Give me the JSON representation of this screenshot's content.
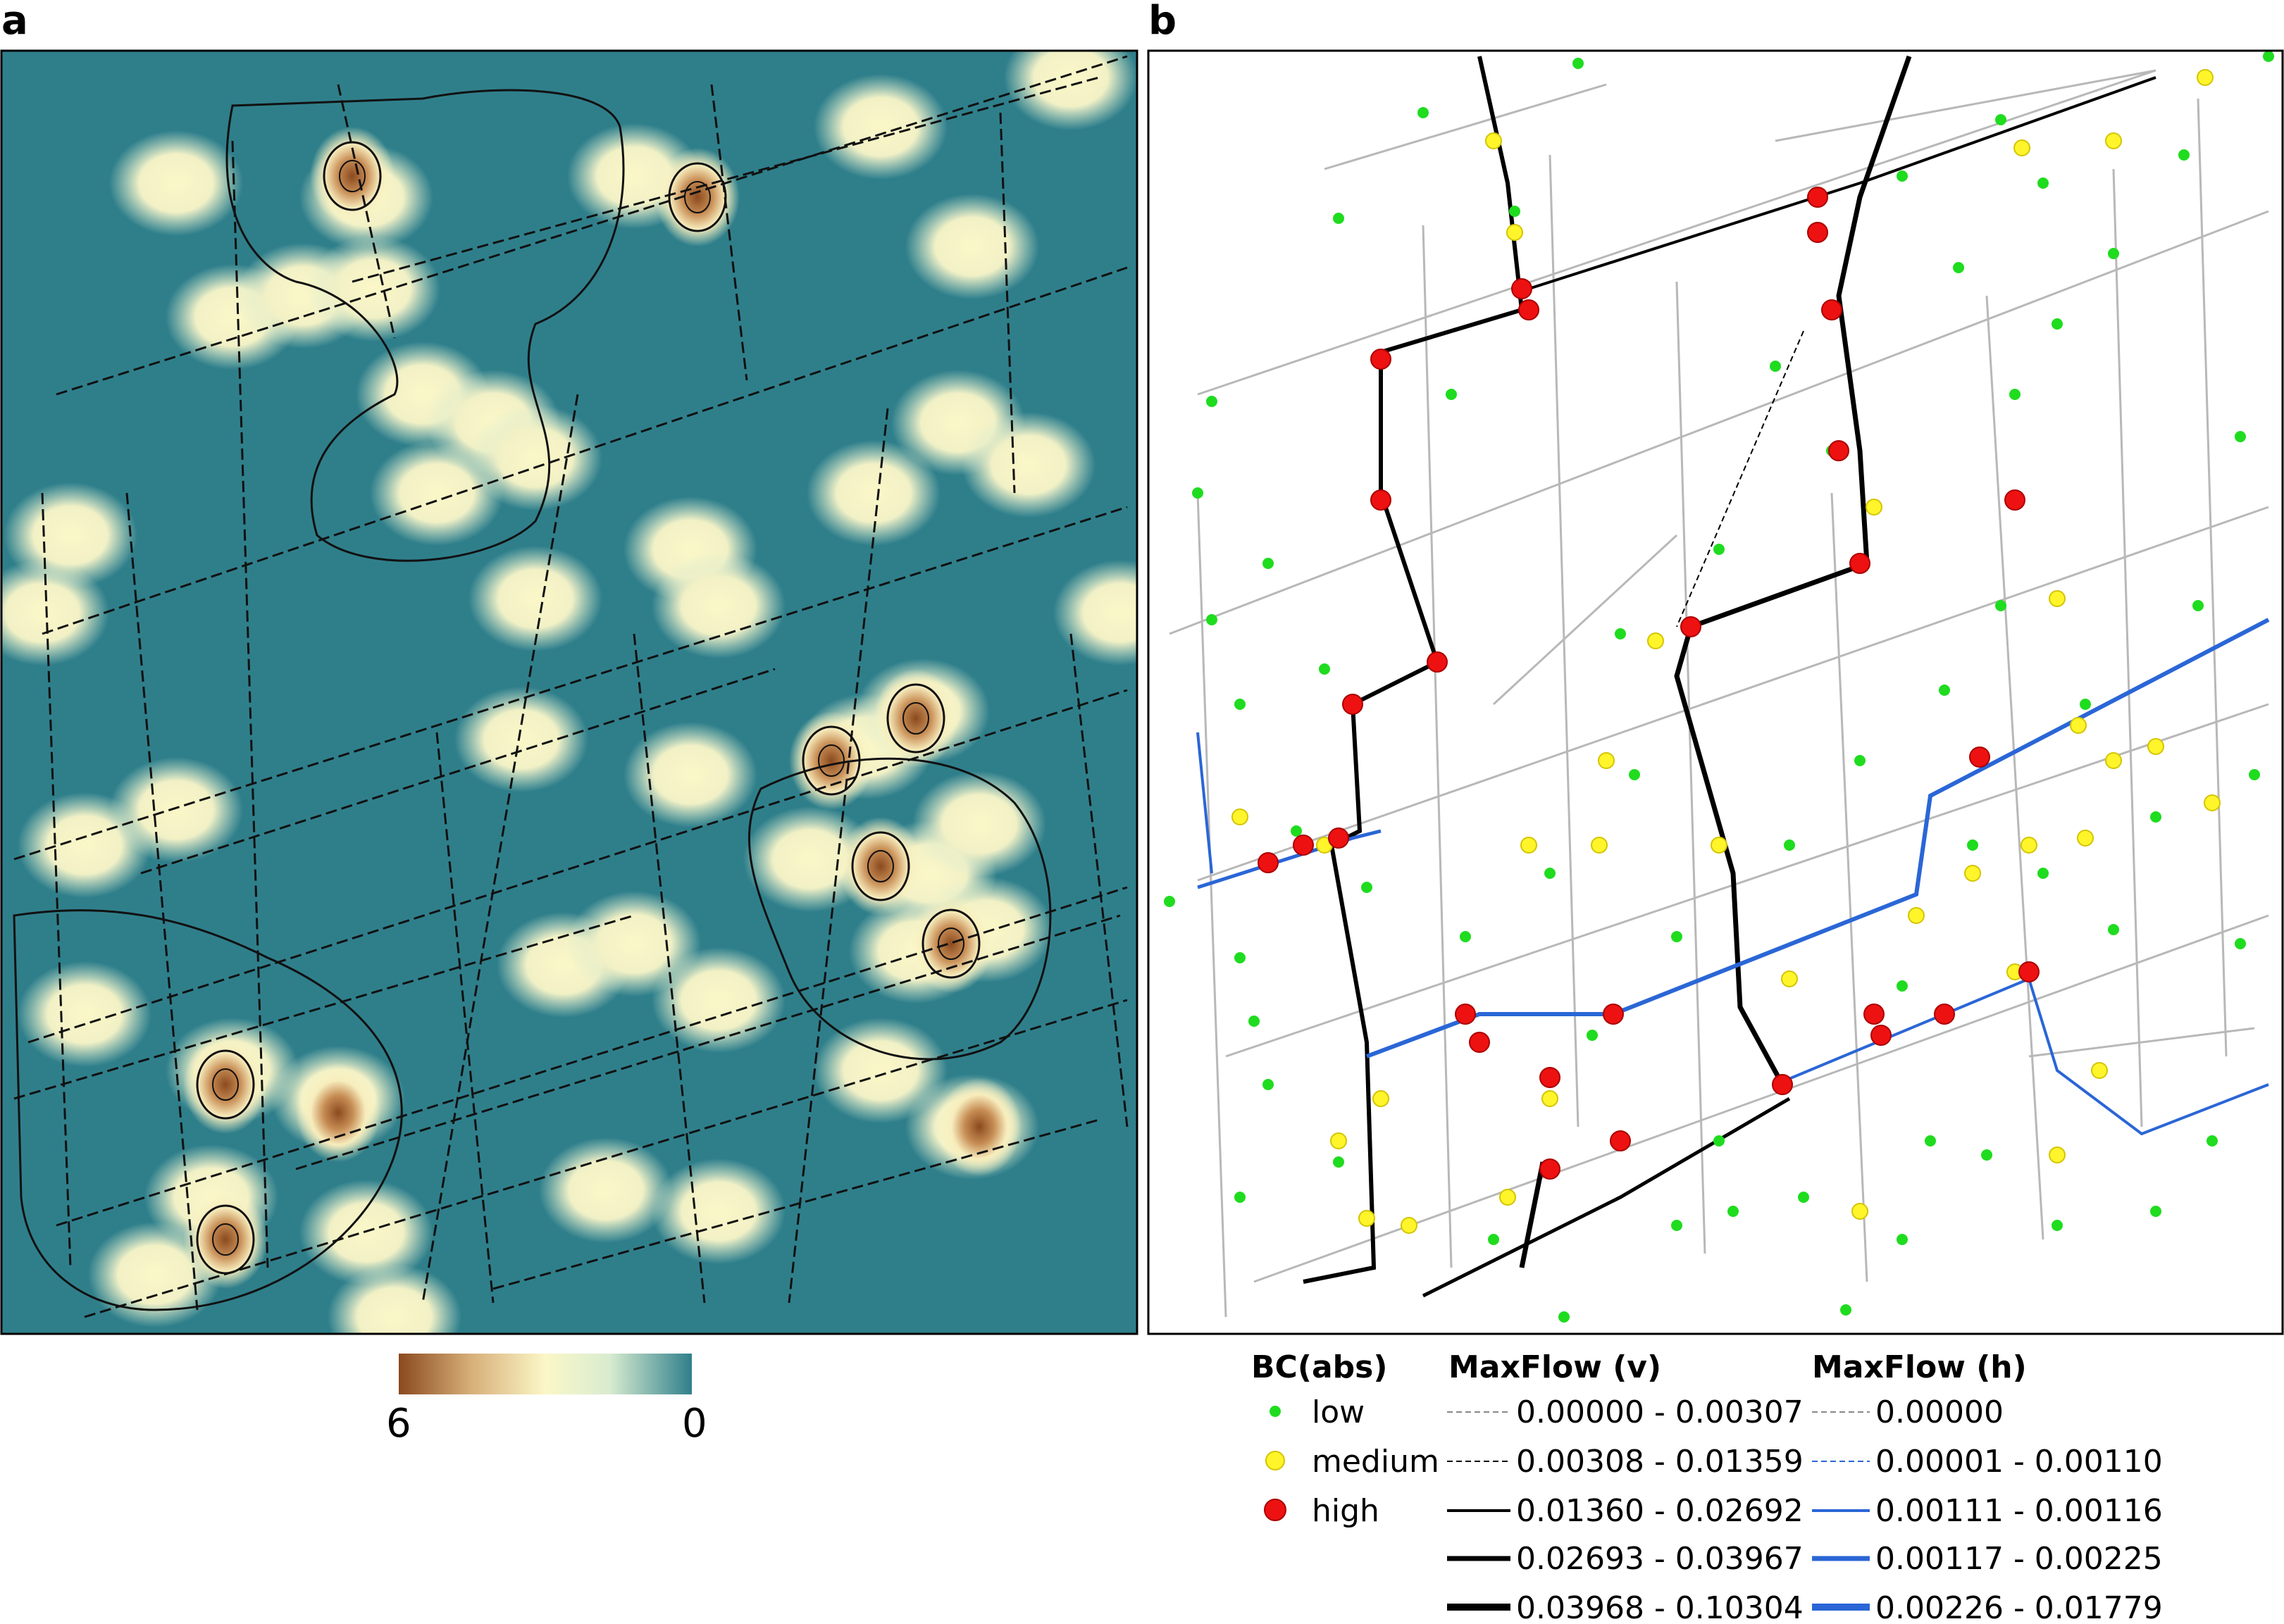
{
  "panels": {
    "a": {
      "letter": "a"
    },
    "b": {
      "letter": "b"
    }
  },
  "colors": {
    "map_background": "#2f7f8b",
    "density_high": "#8b4a1e",
    "density_mid": "#fbf7c8",
    "node_low": "#1fdc1f",
    "node_medium": "#fff52a",
    "node_high": "#ee1111",
    "flow_v": "#000000",
    "flow_h": "#2a66d6",
    "edge_base": "#b8b8b8"
  },
  "colorbar": {
    "max_label": "6",
    "min_label": "0",
    "stops": [
      "#8b4a1e",
      "#d8b07a",
      "#fbf7c8",
      "#d8ecd0",
      "#2f7f8b"
    ]
  },
  "legend": {
    "bc_title": "BC(abs)",
    "bc_items": [
      {
        "label": "low",
        "class": "low"
      },
      {
        "label": "medium",
        "class": "medium"
      },
      {
        "label": "high",
        "class": "high"
      }
    ],
    "v_title": "MaxFlow (v)",
    "v_items": [
      "0.00000 - 0.00307",
      "0.00308 - 0.01359",
      "0.01360 - 0.02692",
      "0.02693 - 0.03967",
      "0.03968 - 0.10304"
    ],
    "h_title": "MaxFlow (h)",
    "h_items": [
      "0.00000",
      "0.00001 - 0.00110",
      "0.00111 - 0.00116",
      "0.00117 - 0.00225",
      "0.00226 - 0.01779"
    ]
  }
}
